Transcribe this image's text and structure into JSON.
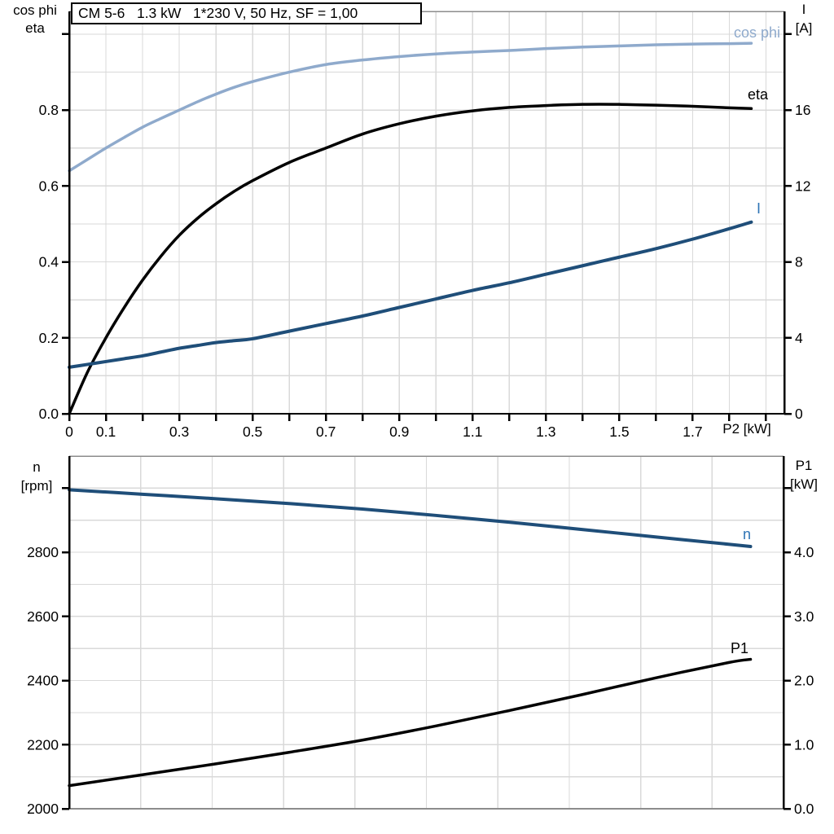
{
  "title_box": {
    "text": "CM 5-6   1.3 kW   1*230 V, 50 Hz, SF = 1,00"
  },
  "axes_labels": {
    "top_left_1": "cos phi",
    "top_left_2": "eta",
    "top_right_1": "I",
    "top_right_2": "[A]",
    "bottom_left_1": "n",
    "bottom_left_2": "[rpm]",
    "bottom_right_1": "P1",
    "bottom_right_2": "[kW]"
  },
  "colors": {
    "light_blue": "#8FAACC",
    "dark_blue": "#1F4E79",
    "label_blue": "#2E74B5",
    "black": "#000000",
    "grid": "#D9D9D9",
    "gray_spine": "#8C8C8C"
  },
  "chart_data": [
    {
      "type": "line",
      "title": "CM 5-6 1.3 kW 1*230 V, 50 Hz, SF = 1,00",
      "xlabel": "P2 [kW]",
      "ylabel_left": "cos phi / eta",
      "ylabel_right": "I [A]",
      "xlim": [
        0,
        1.95
      ],
      "ylim_left": [
        0,
        1.06
      ],
      "ylim_right": [
        0,
        21.2
      ],
      "grid": {
        "x_values": [
          0.1,
          0.2,
          0.3,
          0.4,
          0.5,
          0.6,
          0.7,
          0.8,
          0.9,
          1.0,
          1.1,
          1.2,
          1.3,
          1.4,
          1.5,
          1.6,
          1.7,
          1.8,
          1.9
        ],
        "y_values": [
          0.1,
          0.2,
          0.3,
          0.4,
          0.5,
          0.6,
          0.7,
          0.8,
          0.9,
          1.0
        ]
      },
      "x_axis": {
        "tick_values": [
          0,
          0.1,
          0.2,
          0.3,
          0.4,
          0.5,
          0.6,
          0.7,
          0.8,
          0.9,
          1.0,
          1.1,
          1.2,
          1.3,
          1.4,
          1.5,
          1.6,
          1.7,
          1.8,
          1.9
        ],
        "tick_labels": [
          "0",
          "0.1",
          "",
          "0.3",
          "",
          "0.5",
          "",
          "0.7",
          "",
          "0.9",
          "",
          "1.1",
          "",
          "1.3",
          "",
          "1.5",
          "",
          "1.7",
          "",
          ""
        ]
      },
      "y_left": {
        "tick_values": [
          0,
          0.2,
          0.4,
          0.6,
          0.8,
          1.0
        ],
        "tick_labels": [
          "0.0",
          "0.2",
          "0.4",
          "0.6",
          "0.8",
          ""
        ]
      },
      "y_right": {
        "tick_values": [
          0,
          4,
          8,
          12,
          16,
          20
        ],
        "tick_labels": [
          "0",
          "4",
          "8",
          "12",
          "16",
          ""
        ]
      },
      "x": [
        0,
        0.05,
        0.1,
        0.15,
        0.2,
        0.25,
        0.3,
        0.35,
        0.4,
        0.45,
        0.5,
        0.6,
        0.7,
        0.8,
        0.9,
        1.0,
        1.1,
        1.2,
        1.3,
        1.4,
        1.5,
        1.6,
        1.7,
        1.8,
        1.86
      ],
      "series": [
        {
          "name": "cos phi",
          "axis": "left",
          "color": "#8FAACC",
          "width": 3.5,
          "values": [
            0.64,
            0.67,
            0.7,
            0.728,
            0.755,
            0.778,
            0.8,
            0.822,
            0.842,
            0.86,
            0.875,
            0.9,
            0.92,
            0.932,
            0.941,
            0.948,
            0.953,
            0.957,
            0.962,
            0.966,
            0.969,
            0.972,
            0.974,
            0.975,
            0.976
          ]
        },
        {
          "name": "eta",
          "axis": "left",
          "color": "#000000",
          "width": 3.5,
          "values": [
            0,
            0.11,
            0.2,
            0.28,
            0.352,
            0.415,
            0.47,
            0.515,
            0.553,
            0.586,
            0.614,
            0.662,
            0.7,
            0.737,
            0.764,
            0.784,
            0.798,
            0.807,
            0.812,
            0.815,
            0.815,
            0.813,
            0.81,
            0.806,
            0.804
          ]
        },
        {
          "name": "I",
          "axis": "right",
          "color": "#1F4E79",
          "width": 4,
          "values": [
            2.45,
            2.6,
            2.75,
            2.9,
            3.05,
            3.25,
            3.45,
            3.6,
            3.75,
            3.85,
            3.95,
            4.35,
            4.75,
            5.15,
            5.6,
            6.05,
            6.5,
            6.9,
            7.35,
            7.8,
            8.25,
            8.7,
            9.2,
            9.75,
            10.1
          ]
        }
      ],
      "legend_position": "curve-end labels"
    },
    {
      "type": "line",
      "title": "",
      "xlabel": "",
      "ylabel_left": "n [rpm]",
      "ylabel_right": "P1 [kW]",
      "xlim": [
        0,
        1.95
      ],
      "ylim_left": [
        2000,
        3100
      ],
      "ylim_right": [
        0,
        5.5
      ],
      "grid": {
        "x_values": [
          0.195,
          0.39,
          0.585,
          0.78,
          0.975,
          1.17,
          1.365,
          1.56,
          1.755
        ],
        "y_values": [
          2100,
          2200,
          2300,
          2400,
          2500,
          2600,
          2700,
          2800,
          2900,
          3000
        ]
      },
      "x_axis": {
        "tick_values": [],
        "tick_labels": []
      },
      "y_left": {
        "tick_values": [
          2000,
          2200,
          2400,
          2600,
          2800,
          3000
        ],
        "tick_labels": [
          "2000",
          "2200",
          "2400",
          "2600",
          "2800",
          ""
        ]
      },
      "y_right": {
        "tick_values": [
          0,
          1,
          2,
          3,
          4,
          5
        ],
        "tick_labels": [
          "0.0",
          "1.0",
          "2.0",
          "3.0",
          "4.0",
          ""
        ]
      },
      "x": [
        0,
        0.2,
        0.4,
        0.6,
        0.8,
        1.0,
        1.2,
        1.4,
        1.6,
        1.8,
        1.86
      ],
      "series": [
        {
          "name": "n",
          "axis": "left",
          "color": "#1F4E79",
          "width": 4,
          "values": [
            2995,
            2981,
            2967,
            2952,
            2935,
            2915,
            2894,
            2871,
            2848,
            2825,
            2818
          ]
        },
        {
          "name": "P1",
          "axis": "right",
          "color": "#000000",
          "width": 3.5,
          "values": [
            0.36,
            0.53,
            0.7,
            0.88,
            1.07,
            1.29,
            1.53,
            1.78,
            2.04,
            2.28,
            2.33
          ]
        }
      ],
      "legend_position": "curve-end labels"
    }
  ]
}
